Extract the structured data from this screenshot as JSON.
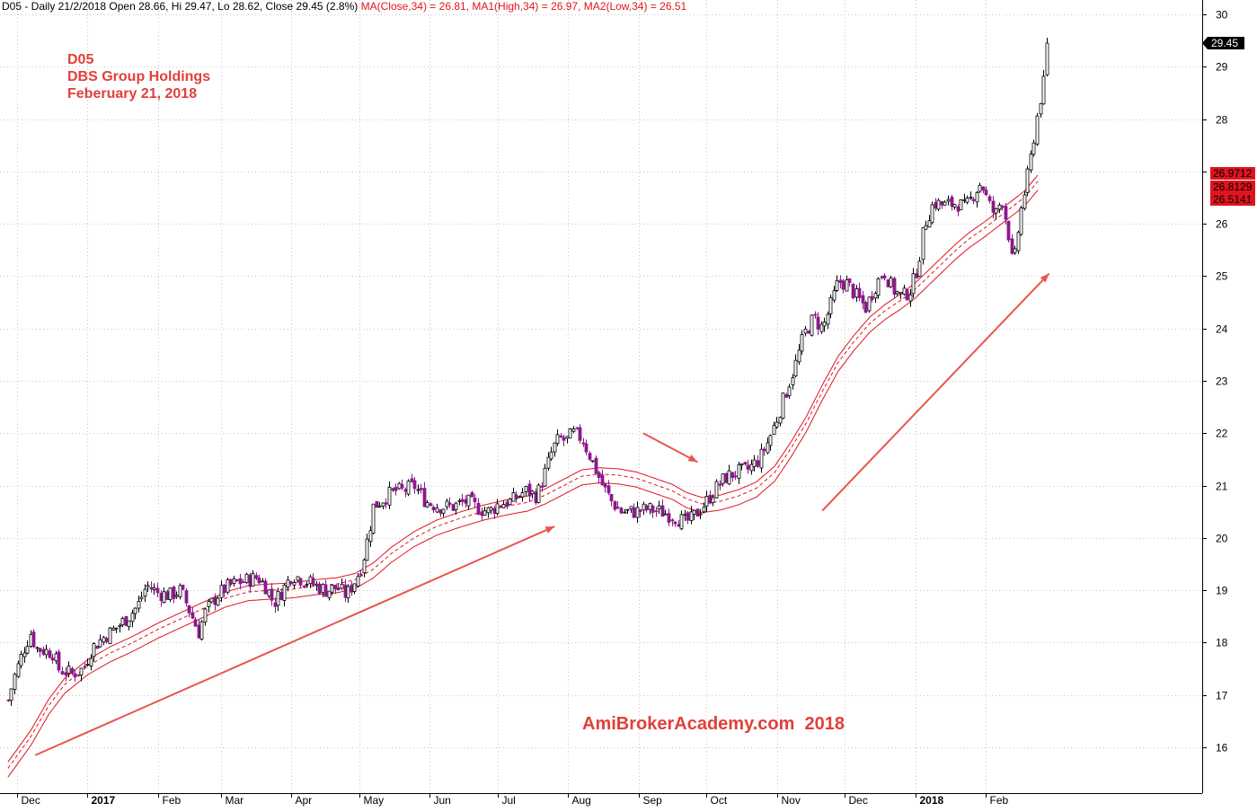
{
  "header": {
    "prefix": "D05 - Daily 21/2/2018 Open 28.66, Hi 29.47, Lo 28.62, Close 29.45 (2.8%)",
    "ma_close": "MA(Close,34) = 26.81,",
    "ma_high": "MA1(High,34) = 26.97,",
    "ma_low": "MA2(Low,34) = 26.51"
  },
  "annotations": {
    "ticker": "D05",
    "company": "DBS Group Holdings",
    "date": "Feberuary 21, 2018",
    "watermark": "AmiBrokerAcademy.com  2018"
  },
  "colors": {
    "background": "#ffffff",
    "grid": "#c8c8c8",
    "candle_up": "#000000",
    "candle_down": "#8b1a8b",
    "ma_band": "#e0141e",
    "arrow": "#e8554e",
    "text_red": "#e0403a",
    "last_price_bg": "#000000",
    "ma_label_bg": "#e0141e"
  },
  "chart_data": {
    "type": "candlestick",
    "title": "D05",
    "ylim": [
      15.2,
      30.3
    ],
    "y_ticks": [
      16,
      17,
      18,
      19,
      20,
      21,
      22,
      23,
      24,
      25,
      26,
      27,
      28,
      29,
      30
    ],
    "y_tick_labels": [
      "16",
      "17",
      "18",
      "19",
      "20",
      "21",
      "22",
      "23",
      "24",
      "25",
      "26",
      "27",
      "28",
      "29",
      "30"
    ],
    "x_range_days": [
      0,
      450
    ],
    "x_ticks": [
      {
        "label": "Dec",
        "day": 0,
        "bold": false
      },
      {
        "label": "2017",
        "day": 31,
        "bold": true
      },
      {
        "label": "Feb",
        "day": 62,
        "bold": false
      },
      {
        "label": "Mar",
        "day": 90,
        "bold": false
      },
      {
        "label": "Apr",
        "day": 121,
        "bold": false
      },
      {
        "label": "May",
        "day": 151,
        "bold": false
      },
      {
        "label": "Jun",
        "day": 182,
        "bold": false
      },
      {
        "label": "Jul",
        "day": 212,
        "bold": false
      },
      {
        "label": "Aug",
        "day": 243,
        "bold": false
      },
      {
        "label": "Sep",
        "day": 274,
        "bold": false
      },
      {
        "label": "Oct",
        "day": 304,
        "bold": false
      },
      {
        "label": "Nov",
        "day": 335,
        "bold": false
      },
      {
        "label": "Dec",
        "day": 365,
        "bold": false
      },
      {
        "label": "2018",
        "day": 396,
        "bold": true
      },
      {
        "label": "Feb",
        "day": 427,
        "bold": false
      }
    ],
    "price_path": [
      [
        -4,
        16.9
      ],
      [
        -1,
        17.4
      ],
      [
        3,
        17.9
      ],
      [
        6,
        18.2
      ],
      [
        8,
        17.9
      ],
      [
        12,
        17.85
      ],
      [
        16,
        17.8
      ],
      [
        18,
        17.5
      ],
      [
        24,
        17.4
      ],
      [
        29,
        17.5
      ],
      [
        33,
        17.9
      ],
      [
        38,
        18.1
      ],
      [
        44,
        18.3
      ],
      [
        49,
        18.5
      ],
      [
        53,
        18.7
      ],
      [
        57,
        19.1
      ],
      [
        62,
        18.95
      ],
      [
        67,
        18.9
      ],
      [
        72,
        19.0
      ],
      [
        76,
        18.6
      ],
      [
        80,
        18.2
      ],
      [
        83,
        18.6
      ],
      [
        88,
        18.9
      ],
      [
        92,
        19.05
      ],
      [
        97,
        19.15
      ],
      [
        102,
        19.2
      ],
      [
        106,
        19.25
      ],
      [
        110,
        19.05
      ],
      [
        113,
        18.75
      ],
      [
        117,
        19.0
      ],
      [
        121,
        19.3
      ],
      [
        126,
        19.2
      ],
      [
        131,
        19.1
      ],
      [
        136,
        19.0
      ],
      [
        141,
        19.05
      ],
      [
        145,
        18.9
      ],
      [
        149,
        19.2
      ],
      [
        152,
        19.5
      ],
      [
        155,
        20.1
      ],
      [
        157,
        20.6
      ],
      [
        160,
        20.7
      ],
      [
        166,
        20.9
      ],
      [
        170,
        20.9
      ],
      [
        175,
        21.0
      ],
      [
        180,
        20.7
      ],
      [
        186,
        20.6
      ],
      [
        192,
        20.6
      ],
      [
        198,
        20.7
      ],
      [
        204,
        20.55
      ],
      [
        208,
        20.5
      ],
      [
        212,
        20.65
      ],
      [
        218,
        20.7
      ],
      [
        224,
        20.9
      ],
      [
        229,
        20.8
      ],
      [
        233,
        21.3
      ],
      [
        236,
        21.7
      ],
      [
        239,
        21.9
      ],
      [
        242,
        21.85
      ],
      [
        245,
        22.0
      ],
      [
        249,
        21.9
      ],
      [
        252,
        21.6
      ],
      [
        255,
        21.3
      ],
      [
        258,
        21.0
      ],
      [
        262,
        20.7
      ],
      [
        266,
        20.5
      ],
      [
        272,
        20.5
      ],
      [
        278,
        20.55
      ],
      [
        284,
        20.5
      ],
      [
        290,
        20.4
      ],
      [
        294,
        20.3
      ],
      [
        297,
        20.35
      ],
      [
        301,
        20.55
      ],
      [
        304,
        20.7
      ],
      [
        308,
        20.95
      ],
      [
        312,
        21.15
      ],
      [
        317,
        21.25
      ],
      [
        322,
        21.3
      ],
      [
        327,
        21.5
      ],
      [
        331,
        21.85
      ],
      [
        335,
        22.3
      ],
      [
        339,
        22.8
      ],
      [
        343,
        23.3
      ],
      [
        347,
        23.9
      ],
      [
        351,
        24.2
      ],
      [
        355,
        24.0
      ],
      [
        359,
        24.5
      ],
      [
        362,
        24.9
      ],
      [
        366,
        24.85
      ],
      [
        370,
        24.6
      ],
      [
        374,
        24.4
      ],
      [
        378,
        24.8
      ],
      [
        382,
        25.1
      ],
      [
        386,
        24.75
      ],
      [
        390,
        24.6
      ],
      [
        394,
        24.75
      ],
      [
        397,
        25.2
      ],
      [
        400,
        26.0
      ],
      [
        404,
        26.4
      ],
      [
        409,
        26.35
      ],
      [
        414,
        26.4
      ],
      [
        418,
        26.3
      ],
      [
        422,
        26.6
      ],
      [
        425,
        26.8
      ],
      [
        428,
        26.4
      ],
      [
        431,
        26.15
      ],
      [
        434,
        26.5
      ],
      [
        437,
        25.8
      ],
      [
        439,
        25.1
      ],
      [
        441,
        25.8
      ],
      [
        443,
        26.4
      ],
      [
        445,
        26.8
      ],
      [
        447,
        27.3
      ],
      [
        449,
        27.9
      ],
      [
        451,
        28.4
      ],
      [
        453,
        28.8
      ],
      [
        454,
        29.45
      ]
    ],
    "ma_band_path": [
      [
        -4,
        15.6
      ],
      [
        6,
        16.2
      ],
      [
        14,
        16.8
      ],
      [
        21,
        17.2
      ],
      [
        31,
        17.55
      ],
      [
        41,
        17.8
      ],
      [
        51,
        18.0
      ],
      [
        62,
        18.25
      ],
      [
        72,
        18.45
      ],
      [
        82,
        18.65
      ],
      [
        92,
        18.85
      ],
      [
        102,
        18.97
      ],
      [
        112,
        19.0
      ],
      [
        121,
        19.02
      ],
      [
        131,
        19.08
      ],
      [
        141,
        19.12
      ],
      [
        149,
        19.2
      ],
      [
        157,
        19.4
      ],
      [
        165,
        19.7
      ],
      [
        175,
        20.0
      ],
      [
        185,
        20.22
      ],
      [
        195,
        20.37
      ],
      [
        205,
        20.5
      ],
      [
        215,
        20.6
      ],
      [
        225,
        20.68
      ],
      [
        233,
        20.82
      ],
      [
        241,
        21.0
      ],
      [
        249,
        21.18
      ],
      [
        257,
        21.22
      ],
      [
        265,
        21.2
      ],
      [
        273,
        21.14
      ],
      [
        281,
        21.02
      ],
      [
        289,
        20.9
      ],
      [
        295,
        20.75
      ],
      [
        302,
        20.65
      ],
      [
        310,
        20.7
      ],
      [
        318,
        20.8
      ],
      [
        326,
        20.95
      ],
      [
        334,
        21.25
      ],
      [
        341,
        21.7
      ],
      [
        348,
        22.2
      ],
      [
        355,
        22.8
      ],
      [
        362,
        23.35
      ],
      [
        369,
        23.75
      ],
      [
        376,
        24.1
      ],
      [
        383,
        24.35
      ],
      [
        390,
        24.55
      ],
      [
        396,
        24.75
      ],
      [
        402,
        25.0
      ],
      [
        408,
        25.25
      ],
      [
        414,
        25.5
      ],
      [
        420,
        25.72
      ],
      [
        426,
        25.9
      ],
      [
        432,
        26.1
      ],
      [
        438,
        26.3
      ],
      [
        444,
        26.5
      ],
      [
        450,
        26.81
      ]
    ],
    "band_half_width": 0.12,
    "last_price": "29.45",
    "ma_labels": [
      "26.9712",
      "26.8129",
      "26.5141"
    ],
    "trend_arrows": [
      {
        "from": [
          8,
          15.85
        ],
        "to": [
          237,
          20.22
        ],
        "direction": "up"
      },
      {
        "from": [
          276,
          22.0
        ],
        "to": [
          300,
          21.45
        ],
        "direction": "down"
      },
      {
        "from": [
          355,
          20.52
        ],
        "to": [
          455,
          25.05
        ],
        "direction": "up"
      }
    ]
  }
}
